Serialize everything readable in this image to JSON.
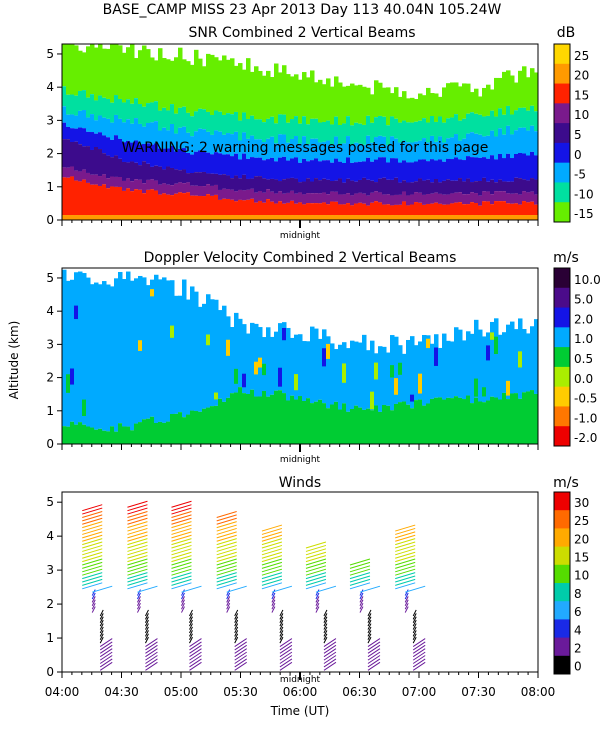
{
  "header": {
    "line1": "BASE_CAMP MISS  23 Apr 2013 Day 113 40.04N 105.24W"
  },
  "warning_text": "WARNING: 2 warning messages posted for this page",
  "midnight_label": "midnight",
  "shared_axes": {
    "ylabel": "Altitude (km)",
    "xlabel": "Time (UT)",
    "xticks": [
      "04:00",
      "04:30",
      "05:00",
      "05:30",
      "06:00",
      "06:30",
      "07:00",
      "07:30",
      "08:00"
    ],
    "yticks": [
      "0",
      "1",
      "2",
      "3",
      "4",
      "5"
    ],
    "xlim_hours": [
      4.0,
      8.0
    ],
    "ylim_km": [
      0,
      5.3
    ]
  },
  "chart_data": [
    {
      "type": "heatmap",
      "title": "SNR Combined 2 Vertical Beams",
      "units": "dB",
      "xlabel": "Time (UT)",
      "ylabel": "Altitude (km)",
      "colorbar_ticks": [
        "25",
        "20",
        "15",
        "10",
        "5",
        "0",
        "-5",
        "-10",
        "-15"
      ],
      "colorbar_values": [
        25,
        20,
        15,
        10,
        5,
        0,
        -5,
        -10,
        -15
      ],
      "colorbar_colors": [
        "#ffd700",
        "#ff9a00",
        "#ff2200",
        "#7a1a8c",
        "#3c0b8c",
        "#1414e6",
        "#00aaff",
        "#00e0a0",
        "#66ee00"
      ],
      "time_hours": [
        4.0,
        4.5,
        5.0,
        5.5,
        6.0,
        6.5,
        7.0,
        7.5,
        8.0
      ],
      "layers_top_km": {
        "strong_gt15dB": [
          1.3,
          0.9,
          0.8,
          0.6,
          0.5,
          0.5,
          0.5,
          0.5,
          0.5
        ],
        "mid_5_to_15dB": [
          2.5,
          1.8,
          1.5,
          1.3,
          1.2,
          1.2,
          1.2,
          1.2,
          1.2
        ],
        "low_m5_to_5dB": [
          3.3,
          3.0,
          2.7,
          2.5,
          2.4,
          2.4,
          2.4,
          2.6,
          2.8
        ],
        "weak_lt_m5dB": [
          5.3,
          5.1,
          4.9,
          4.6,
          4.4,
          4.0,
          3.8,
          3.9,
          4.6
        ]
      }
    },
    {
      "type": "heatmap",
      "title": "Doppler Velocity Combined 2 Vertical Beams",
      "units": "m/s",
      "xlabel": "Time (UT)",
      "ylabel": "Altitude (km)",
      "colorbar_ticks": [
        "10.0",
        "5.0",
        "2.0",
        "1.0",
        "0.5",
        "0.0",
        "-0.5",
        "-1.0",
        "-2.0"
      ],
      "colorbar_values": [
        10.0,
        5.0,
        2.0,
        1.0,
        0.5,
        0.0,
        -0.5,
        -1.0,
        -2.0
      ],
      "colorbar_colors": [
        "#2a0035",
        "#4b0b8a",
        "#1414e6",
        "#00aaff",
        "#00cc33",
        "#aaee00",
        "#ffcc00",
        "#ff7700",
        "#ee0000"
      ],
      "time_hours": [
        4.0,
        4.5,
        5.0,
        5.5,
        6.0,
        6.5,
        7.0,
        7.5,
        8.0
      ],
      "data_top_km": [
        5.1,
        5.0,
        4.7,
        3.6,
        3.3,
        3.0,
        3.0,
        3.5,
        3.6
      ],
      "green_band_top_km": [
        0.6,
        0.5,
        0.9,
        1.6,
        1.4,
        1.0,
        1.2,
        1.4,
        1.5
      ]
    },
    {
      "type": "scatter",
      "title": "Winds",
      "units": "m/s",
      "xlabel": "Time (UT)",
      "ylabel": "Altitude (km)",
      "colorbar_ticks": [
        "30",
        "25",
        "20",
        "15",
        "10",
        "8",
        "6",
        "4",
        "2",
        "0"
      ],
      "colorbar_values": [
        30,
        25,
        20,
        15,
        10,
        8,
        6,
        4,
        2,
        0
      ],
      "colorbar_colors": [
        "#ee0000",
        "#ff6a00",
        "#ffaa00",
        "#ccdd00",
        "#55dd00",
        "#00ccaa",
        "#22aaff",
        "#1a2ae6",
        "#6a1a9a",
        "#000000"
      ],
      "profiles": [
        {
          "time": 4.17,
          "max_alt_km": 4.8
        },
        {
          "time": 4.55,
          "max_alt_km": 4.9
        },
        {
          "time": 4.92,
          "max_alt_km": 4.9
        },
        {
          "time": 5.3,
          "max_alt_km": 4.6
        },
        {
          "time": 5.68,
          "max_alt_km": 4.2
        },
        {
          "time": 6.05,
          "max_alt_km": 3.7
        },
        {
          "time": 6.42,
          "max_alt_km": 3.2
        },
        {
          "time": 6.8,
          "max_alt_km": 4.2
        }
      ]
    }
  ]
}
